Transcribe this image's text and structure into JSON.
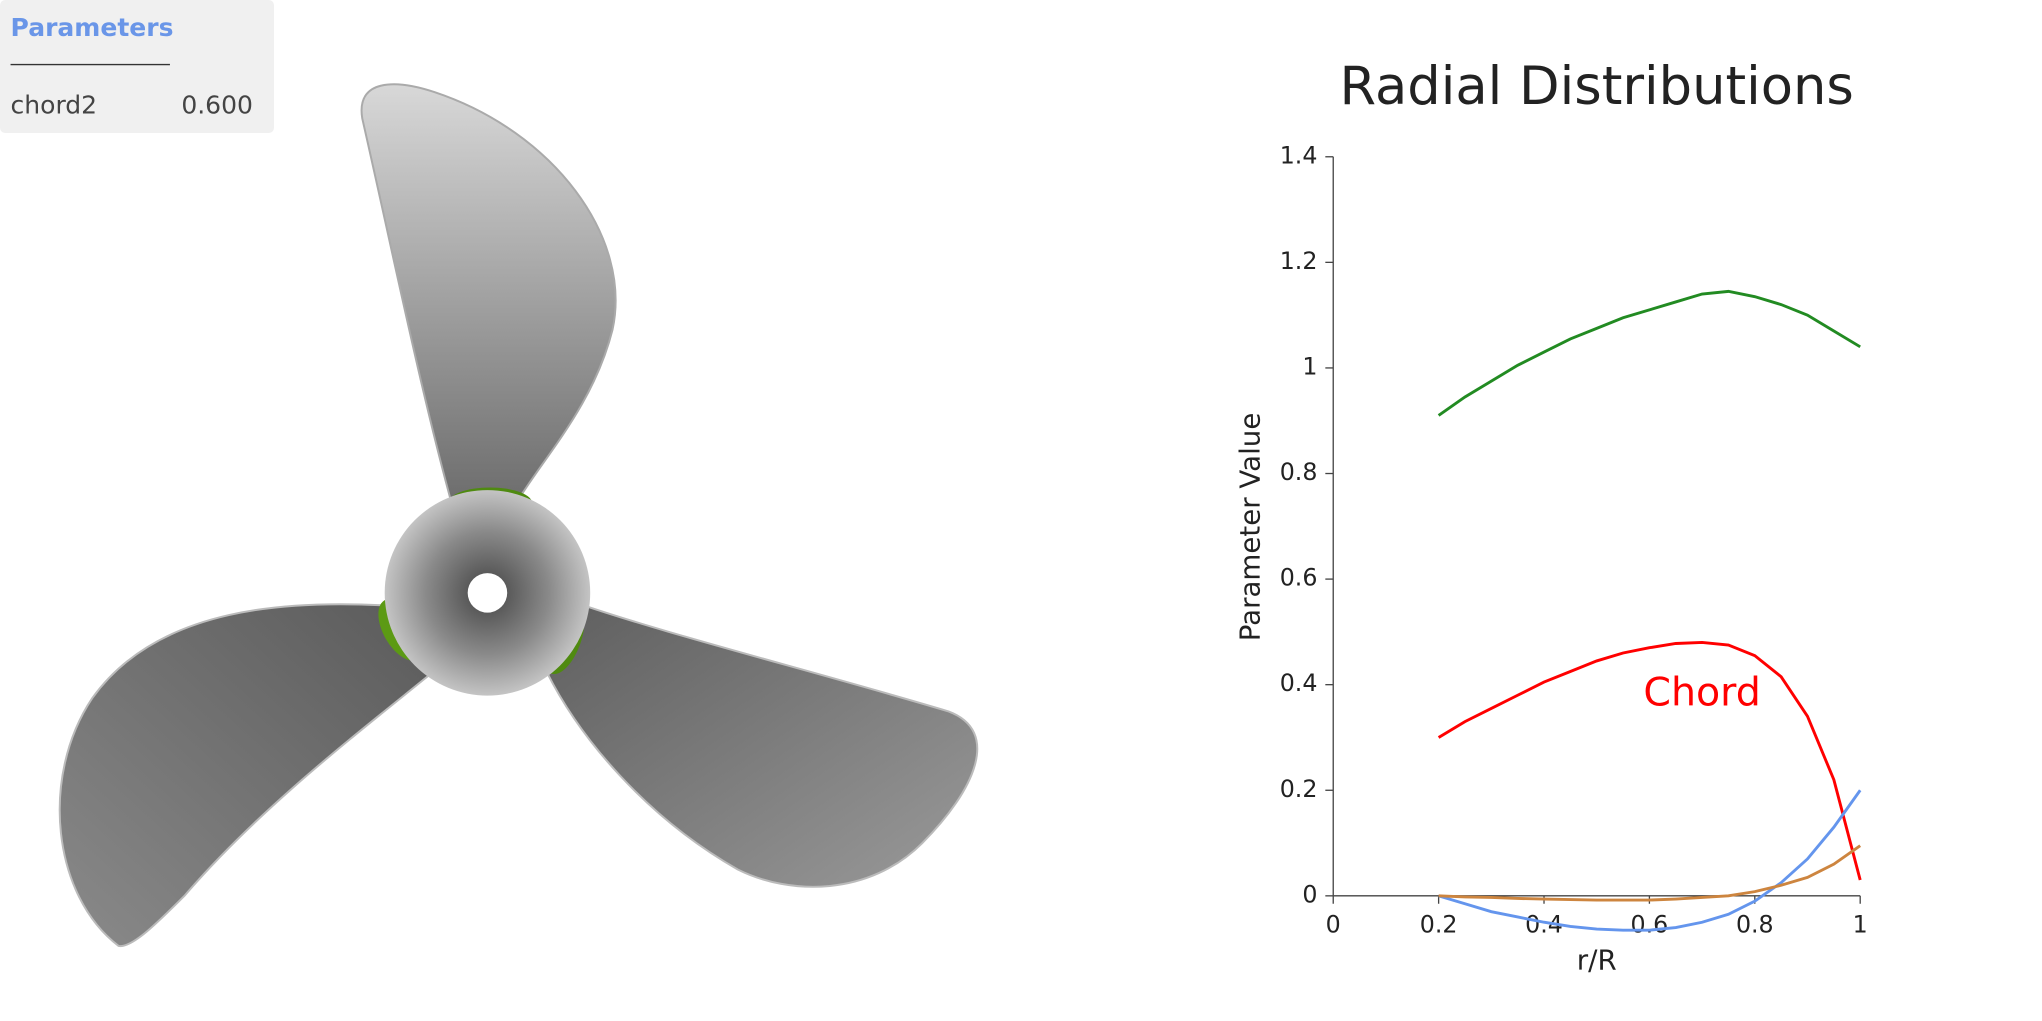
{
  "panel": {
    "title": "Parameters",
    "rows": [
      [
        "chord2",
        "0.600"
      ]
    ]
  },
  "chart_data": {
    "type": "line",
    "title": "Radial Distributions",
    "x_label": "r/R",
    "y_label": "Parameter Value",
    "x": [
      0.2,
      0.25,
      0.3,
      0.35,
      0.4,
      0.45,
      0.5,
      0.55,
      0.6,
      0.65,
      0.7,
      0.75,
      0.8,
      0.85,
      0.9,
      0.95,
      1.0
    ],
    "series": [
      {
        "color": "#228b22",
        "values": [
          0.91,
          0.945,
          0.975,
          1.005,
          1.03,
          1.055,
          1.075,
          1.095,
          1.11,
          1.125,
          1.14,
          1.145,
          1.135,
          1.12,
          1.1,
          1.07,
          1.04
        ]
      },
      {
        "name": "Chord",
        "color": "#ff0000",
        "values": [
          0.3,
          0.33,
          0.355,
          0.38,
          0.405,
          0.425,
          0.445,
          0.46,
          0.47,
          0.478,
          0.48,
          0.475,
          0.455,
          0.415,
          0.34,
          0.22,
          0.03
        ]
      },
      {
        "color": "#6495ed",
        "values": [
          0,
          -0.015,
          -0.03,
          -0.04,
          -0.05,
          -0.058,
          -0.063,
          -0.065,
          -0.065,
          -0.06,
          -0.05,
          -0.035,
          -0.01,
          0.025,
          0.07,
          0.13,
          0.2
        ]
      },
      {
        "color": "#cd853f",
        "values": [
          0,
          -0.002,
          -0.003,
          -0.005,
          -0.006,
          -0.007,
          -0.008,
          -0.008,
          -0.008,
          -0.006,
          -0.003,
          0,
          0.008,
          0.02,
          0.035,
          0.06,
          0.095
        ]
      }
    ],
    "xlim": [
      0,
      1
    ],
    "xticks": [
      0,
      0.2,
      0.4,
      0.6,
      0.8,
      1
    ],
    "ylim": [
      0,
      1.4
    ],
    "yticks": [
      0,
      0.2,
      0.4,
      0.6,
      0.8,
      1,
      1.2,
      1.4
    ],
    "grid": false
  }
}
